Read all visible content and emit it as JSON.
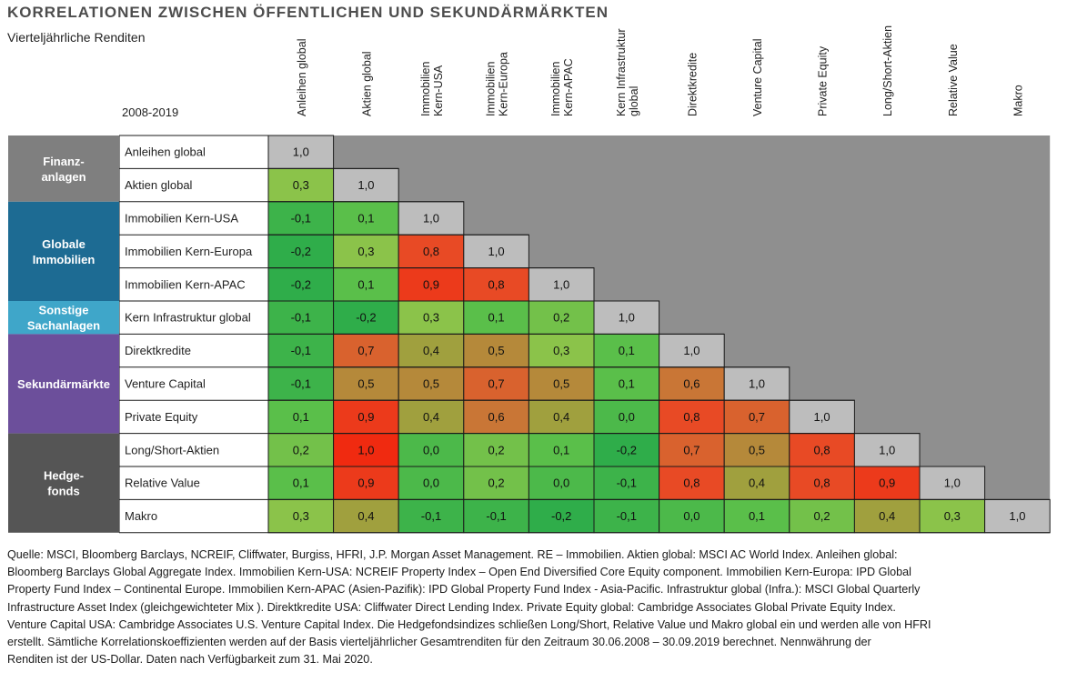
{
  "header": {
    "title": "KORRELATIONEN ZWISCHEN ÖFFENTLICHEN UND SEKUNDÄRMÄRKTEN",
    "subtitle": "Vierteljährliche Renditen",
    "period": "2008-2019"
  },
  "chart_data": {
    "type": "heatmap",
    "title": "KORRELATIONEN ZWISCHEN ÖFFENTLICHEN UND SEKUNDÄRMÄRKTEN",
    "subtitle": "Vierteljährliche Renditen",
    "period": "2008-2019",
    "columns": [
      [
        "Anleihen global"
      ],
      [
        "Aktien global"
      ],
      [
        "Immobilien",
        "Kern-USA"
      ],
      [
        "Immobilien",
        "Kern-Europa"
      ],
      [
        "Immobilien",
        "Kern-APAC"
      ],
      [
        "Kern Infrastruktur",
        "global"
      ],
      [
        "Direktkredite"
      ],
      [
        "Venture Capital"
      ],
      [
        "Private Equity"
      ],
      [
        "Long/Short-Aktien"
      ],
      [
        "Relative Value"
      ],
      [
        "Makro"
      ]
    ],
    "rows": [
      "Anleihen global",
      "Aktien global",
      "Immobilien Kern-USA",
      "Immobilien Kern-Europa",
      "Immobilien Kern-APAC",
      "Kern Infrastruktur global",
      "Direktkredite",
      "Venture Capital",
      "Private Equity",
      "Long/Short-Aktien",
      "Relative Value",
      "Makro"
    ],
    "values": [
      [
        1.0
      ],
      [
        0.3,
        1.0
      ],
      [
        -0.1,
        0.1,
        1.0
      ],
      [
        -0.2,
        0.3,
        0.8,
        1.0
      ],
      [
        -0.2,
        0.1,
        0.9,
        0.8,
        1.0
      ],
      [
        -0.1,
        -0.2,
        0.3,
        0.1,
        0.2,
        1.0
      ],
      [
        -0.1,
        0.7,
        0.4,
        0.5,
        0.3,
        0.1,
        1.0
      ],
      [
        -0.1,
        0.5,
        0.5,
        0.7,
        0.5,
        0.1,
        0.6,
        1.0
      ],
      [
        0.1,
        0.9,
        0.4,
        0.6,
        0.4,
        0.0,
        0.8,
        0.7,
        1.0
      ],
      [
        0.2,
        1.0,
        0.0,
        0.2,
        0.1,
        -0.2,
        0.7,
        0.5,
        0.8,
        1.0
      ],
      [
        0.1,
        0.9,
        0.0,
        0.2,
        0.0,
        -0.1,
        0.8,
        0.4,
        0.8,
        0.9,
        1.0
      ],
      [
        0.3,
        0.4,
        -0.1,
        -0.1,
        -0.2,
        -0.1,
        0.0,
        0.1,
        0.2,
        0.4,
        0.3,
        1.0
      ]
    ],
    "groups": [
      {
        "label": [
          "Finanz-",
          "anlagen"
        ],
        "rows": [
          0,
          1
        ],
        "color": "#7f7f7f"
      },
      {
        "label": [
          "Globale",
          "Immobilien"
        ],
        "rows": [
          2,
          4
        ],
        "color": "#1d6b93"
      },
      {
        "label": [
          "Sonstige",
          "Sachanlagen"
        ],
        "rows": [
          5,
          5
        ],
        "color": "#3fa6c9"
      },
      {
        "label": [
          "Sekundärmärkte"
        ],
        "rows": [
          6,
          8
        ],
        "color": "#6c4f9b"
      },
      {
        "label": [
          "Hedge-",
          "fonds"
        ],
        "rows": [
          9,
          11
        ],
        "color": "#555555"
      }
    ],
    "colors": {
      "diagonal": "#bdbdbd",
      "upper_triangle": "#8f8f8f",
      "scale": [
        {
          "value": -0.2,
          "color": "#2fad4a"
        },
        {
          "value": 0.1,
          "color": "#5abf4a"
        },
        {
          "value": 0.3,
          "color": "#8bc34a"
        },
        {
          "value": 0.4,
          "color": "#a0a03e"
        },
        {
          "value": 0.5,
          "color": "#b5893a"
        },
        {
          "value": 0.6,
          "color": "#c97636"
        },
        {
          "value": 0.7,
          "color": "#d9622e"
        },
        {
          "value": 0.8,
          "color": "#e84a25"
        },
        {
          "value": 1.0,
          "color": "#f02a10"
        }
      ]
    }
  },
  "footnote": [
    "Quelle: MSCI, Bloomberg Barclays, NCREIF, Cliffwater, Burgiss, HFRI, J.P. Morgan Asset Management. RE – Immobilien. Aktien global: MSCI AC World Index. Anleihen global:",
    "Bloomberg Barclays Global Aggregate Index. Immobilien Kern-USA: NCREIF Property Index – Open End Diversified Core Equity component. Immobilien Kern-Europa: IPD Global",
    "Property Fund Index – Continental Europe. Immobilien Kern-APAC (Asien-Pazifik): IPD Global Property Fund Index - Asia-Pacific. Infrastruktur global (Infra.): MSCI Global Quarterly",
    "Infrastructure Asset Index (gleichgewichteter Mix ). Direktkredite USA: Cliffwater Direct Lending Index. Private Equity global: Cambridge Associates Global Private Equity Index.",
    "Venture Capital USA: Cambridge Associates U.S. Venture Capital Index. Die Hedgefondsindizes schließen Long/Short, Relative Value und Makro global ein und werden alle von HFRI",
    "erstellt. Sämtliche Korrelationskoeffizienten werden auf der Basis vierteljährlicher Gesamtrenditen für den Zeitraum 30.06.2008 – 30.09.2019 berechnet. Nennwährung der",
    "Renditen ist der US-Dollar. Daten nach Verfügbarkeit zum 31. Mai 2020."
  ]
}
